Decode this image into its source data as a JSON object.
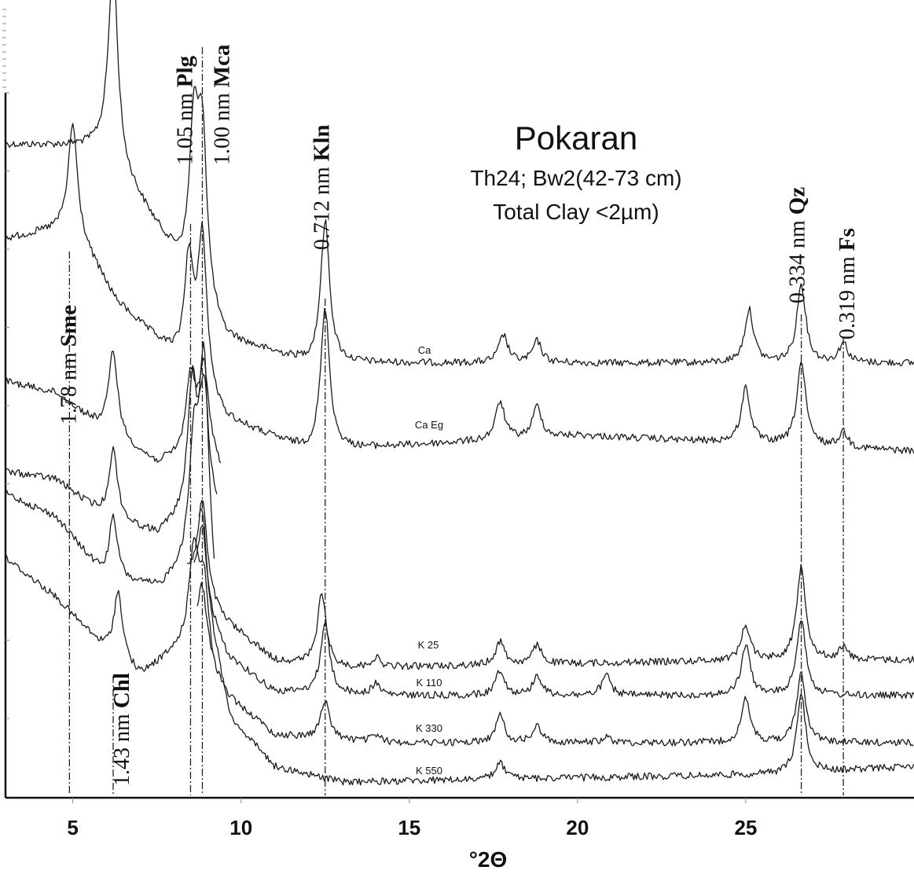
{
  "chart_data": {
    "type": "line",
    "title": "Pokaran",
    "subtitle_lines": [
      "Th24; Bw2(42-73 cm)",
      "Total Clay <2µm)"
    ],
    "xlabel": "°2Θ",
    "ylabel": "",
    "xlim": [
      3,
      30
    ],
    "xticks": [
      5,
      10,
      15,
      20,
      25
    ],
    "grid": false,
    "legend": "none",
    "series": [
      {
        "name": "Ca",
        "peaks": [
          [
            6.2,
            100
          ],
          [
            8.6,
            78
          ],
          [
            8.85,
            82
          ],
          [
            12.5,
            72
          ],
          [
            17.8,
            14
          ],
          [
            18.8,
            11
          ],
          [
            25.1,
            27
          ],
          [
            26.65,
            40
          ],
          [
            27.9,
            10
          ]
        ]
      },
      {
        "name": "Ca Eg",
        "peaks": [
          [
            5.0,
            60
          ],
          [
            8.45,
            65
          ],
          [
            8.85,
            88
          ],
          [
            12.5,
            82
          ],
          [
            17.7,
            22
          ],
          [
            18.8,
            18
          ],
          [
            25.0,
            32
          ],
          [
            26.65,
            48
          ],
          [
            27.9,
            9
          ]
        ]
      },
      {
        "name": "",
        "peaks": [
          [
            6.2,
            55
          ],
          [
            8.5,
            45
          ],
          [
            8.9,
            40
          ]
        ]
      },
      {
        "name": "",
        "peaks": [
          [
            6.2,
            45
          ],
          [
            8.55,
            75
          ],
          [
            8.9,
            60
          ]
        ]
      },
      {
        "name": "",
        "peaks": [
          [
            6.2,
            40
          ],
          [
            8.6,
            60
          ],
          [
            8.9,
            95
          ]
        ]
      },
      {
        "name": "",
        "peaks": [
          [
            6.35,
            42
          ],
          [
            8.6,
            58
          ],
          [
            8.9,
            30
          ]
        ]
      },
      {
        "name": "K 25",
        "peaks": [
          [
            8.85,
            60
          ],
          [
            12.4,
            45
          ],
          [
            14.0,
            6
          ],
          [
            17.7,
            15
          ],
          [
            18.8,
            12
          ],
          [
            25.0,
            22
          ],
          [
            26.65,
            60
          ],
          [
            27.9,
            8
          ]
        ]
      },
      {
        "name": "K 110",
        "peaks": [
          [
            8.85,
            55
          ],
          [
            12.5,
            50
          ],
          [
            14.0,
            8
          ],
          [
            17.7,
            18
          ],
          [
            18.8,
            14
          ],
          [
            20.85,
            14
          ],
          [
            25.0,
            35
          ],
          [
            26.65,
            55
          ]
        ]
      },
      {
        "name": "K 330",
        "peaks": [
          [
            8.85,
            48
          ],
          [
            12.5,
            28
          ],
          [
            14.0,
            6
          ],
          [
            17.7,
            20
          ],
          [
            18.8,
            12
          ],
          [
            20.85,
            4
          ],
          [
            25.0,
            32
          ],
          [
            26.65,
            52
          ]
        ]
      },
      {
        "name": "K 550",
        "peaks": [
          [
            8.85,
            58
          ],
          [
            17.7,
            12
          ],
          [
            26.65,
            55
          ]
        ]
      }
    ],
    "reference_lines": [
      {
        "x": 4.9,
        "label": "1.78 nm",
        "mineral": "Sme"
      },
      {
        "x": 6.2,
        "label": "1.43 nm",
        "mineral": "Chl"
      },
      {
        "x": 8.5,
        "label": "1.05 nm",
        "mineral": "Plg"
      },
      {
        "x": 8.85,
        "label": "1.00 nm",
        "mineral": "Mca"
      },
      {
        "x": 12.5,
        "label": "0.712 nm",
        "mineral": "Kln"
      },
      {
        "x": 26.65,
        "label": "0.334 nm",
        "mineral": "Qz"
      },
      {
        "x": 27.9,
        "label": "0.319 nm",
        "mineral": "Fs"
      }
    ]
  }
}
